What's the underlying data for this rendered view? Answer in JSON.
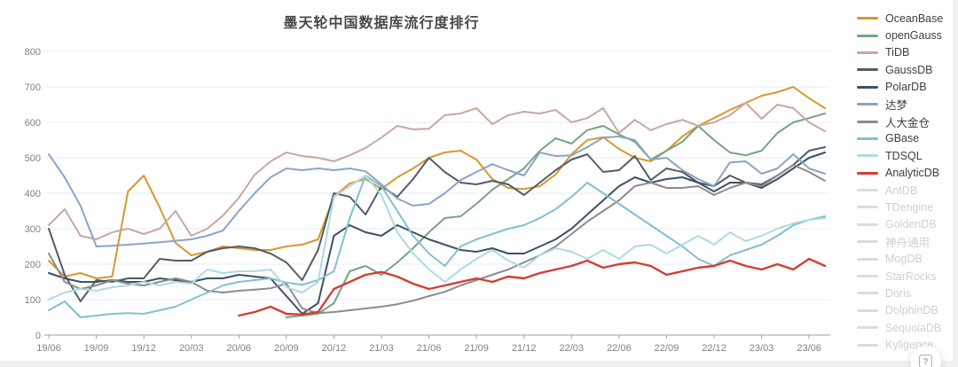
{
  "page": {
    "help_button_label": "?"
  },
  "chart_data": {
    "type": "line",
    "title": "墨天轮中国数据库流行度排行",
    "x_tick_labels": [
      "19/06",
      "19/09",
      "19/12",
      "20/03",
      "20/06",
      "20/09",
      "20/12",
      "21/03",
      "21/06",
      "21/09",
      "21/12",
      "22/03",
      "22/06",
      "22/09",
      "22/12",
      "23/03",
      "23/06"
    ],
    "x_tick_interval_months": 3,
    "n_points": 50,
    "ylim": [
      0,
      800
    ],
    "y_ticks": [
      0,
      100,
      200,
      300,
      400,
      500,
      600,
      700,
      800
    ],
    "grid": true,
    "legend_position": "right",
    "styles": {
      "grid_color": "#e4edf5",
      "axis_color": "#98a0a8",
      "tick_label_color": "#7b828c",
      "title_color": "#45484d",
      "disabled_legend_color": "#d9dcdf"
    },
    "series": [
      {
        "name": "OceanBase",
        "color": "#d9972f",
        "values": [
          210,
          165,
          175,
          160,
          165,
          405,
          450,
          360,
          260,
          225,
          235,
          250,
          245,
          240,
          240,
          250,
          255,
          270,
          390,
          428,
          440,
          412,
          445,
          470,
          500,
          515,
          520,
          495,
          440,
          415,
          412,
          420,
          453,
          510,
          550,
          558,
          525,
          500,
          490,
          520,
          560,
          590,
          612,
          635,
          655,
          675,
          685,
          700,
          668,
          640
        ]
      },
      {
        "name": "openGauss",
        "color": "#74a47f",
        "values": [
          null,
          null,
          null,
          null,
          null,
          null,
          null,
          null,
          null,
          null,
          null,
          null,
          null,
          null,
          null,
          50,
          55,
          60,
          90,
          180,
          195,
          170,
          205,
          245,
          290,
          330,
          335,
          370,
          410,
          440,
          470,
          520,
          555,
          540,
          578,
          590,
          566,
          545,
          495,
          520,
          545,
          590,
          550,
          515,
          507,
          520,
          570,
          600,
          612,
          625
        ]
      },
      {
        "name": "TiDB",
        "color": "#c7a8a0",
        "values": [
          310,
          355,
          280,
          270,
          290,
          300,
          285,
          300,
          350,
          280,
          300,
          337,
          387,
          452,
          490,
          515,
          505,
          500,
          490,
          507,
          528,
          557,
          590,
          580,
          582,
          620,
          625,
          640,
          595,
          620,
          630,
          625,
          635,
          600,
          612,
          640,
          570,
          607,
          578,
          595,
          607,
          590,
          600,
          620,
          655,
          610,
          650,
          640,
          600,
          575
        ]
      },
      {
        "name": "GaussDB",
        "color": "#535c68",
        "values": [
          300,
          170,
          95,
          155,
          150,
          160,
          160,
          215,
          210,
          210,
          235,
          245,
          250,
          245,
          230,
          205,
          155,
          240,
          400,
          390,
          340,
          420,
          390,
          440,
          500,
          460,
          430,
          425,
          435,
          425,
          395,
          430,
          465,
          495,
          510,
          460,
          465,
          505,
          437,
          470,
          460,
          430,
          420,
          450,
          430,
          425,
          450,
          480,
          520,
          530
        ]
      },
      {
        "name": "PolarDB",
        "color": "#3d5166",
        "values": [
          175,
          160,
          150,
          150,
          155,
          150,
          150,
          160,
          155,
          150,
          160,
          160,
          170,
          165,
          160,
          110,
          60,
          90,
          280,
          310,
          290,
          280,
          310,
          290,
          270,
          255,
          240,
          235,
          245,
          230,
          230,
          250,
          270,
          300,
          340,
          380,
          420,
          445,
          430,
          440,
          445,
          430,
          405,
          430,
          430,
          415,
          440,
          470,
          500,
          515
        ]
      },
      {
        "name": "达梦",
        "color": "#8aa4c8",
        "values": [
          510,
          445,
          365,
          250,
          252,
          255,
          258,
          262,
          266,
          270,
          280,
          295,
          350,
          400,
          445,
          470,
          465,
          470,
          465,
          470,
          462,
          425,
          385,
          365,
          370,
          400,
          437,
          460,
          482,
          465,
          450,
          515,
          505,
          507,
          530,
          557,
          560,
          550,
          495,
          500,
          465,
          440,
          420,
          487,
          490,
          455,
          470,
          510,
          470,
          455
        ]
      },
      {
        "name": "人大金仓",
        "color": "#8c8c8c",
        "values": [
          230,
          150,
          130,
          140,
          155,
          145,
          140,
          150,
          160,
          150,
          125,
          120,
          125,
          128,
          132,
          145,
          75,
          62,
          65,
          70,
          75,
          80,
          87,
          97,
          110,
          122,
          140,
          155,
          170,
          185,
          205,
          225,
          250,
          285,
          320,
          350,
          380,
          420,
          430,
          415,
          415,
          420,
          395,
          415,
          430,
          420,
          450,
          480,
          460,
          435
        ]
      },
      {
        "name": "GBase",
        "color": "#85bdd4",
        "values": [
          70,
          95,
          50,
          55,
          60,
          62,
          60,
          70,
          80,
          100,
          120,
          140,
          150,
          155,
          160,
          148,
          142,
          155,
          180,
          330,
          450,
          420,
          350,
          280,
          230,
          195,
          250,
          270,
          285,
          300,
          310,
          330,
          355,
          390,
          430,
          400,
          370,
          340,
          310,
          280,
          250,
          215,
          195,
          225,
          240,
          255,
          280,
          310,
          325,
          335
        ]
      },
      {
        "name": "TDSQL",
        "color": "#aedae3",
        "values": [
          100,
          120,
          130,
          125,
          135,
          140,
          150,
          140,
          150,
          145,
          185,
          175,
          180,
          180,
          185,
          135,
          120,
          150,
          390,
          420,
          450,
          395,
          290,
          230,
          185,
          150,
          185,
          215,
          240,
          210,
          190,
          225,
          245,
          235,
          215,
          240,
          215,
          250,
          255,
          230,
          255,
          280,
          255,
          290,
          265,
          280,
          300,
          315,
          325,
          330
        ]
      },
      {
        "name": "AnalyticDB",
        "color": "#d43d35",
        "highlight": true,
        "values": [
          null,
          null,
          null,
          null,
          null,
          null,
          null,
          null,
          null,
          null,
          null,
          null,
          55,
          65,
          80,
          60,
          58,
          65,
          130,
          150,
          170,
          178,
          165,
          145,
          130,
          140,
          150,
          160,
          150,
          165,
          160,
          175,
          185,
          195,
          210,
          190,
          200,
          205,
          195,
          170,
          180,
          190,
          195,
          210,
          195,
          185,
          200,
          185,
          215,
          195
        ]
      }
    ],
    "legend_disabled": [
      "AntDB",
      "TDengine",
      "GoldenDB",
      "神舟通用",
      "MogDB",
      "StarRocks",
      "Doris",
      "DolphinDB",
      "SequoiaDB",
      "Kyligence"
    ]
  }
}
